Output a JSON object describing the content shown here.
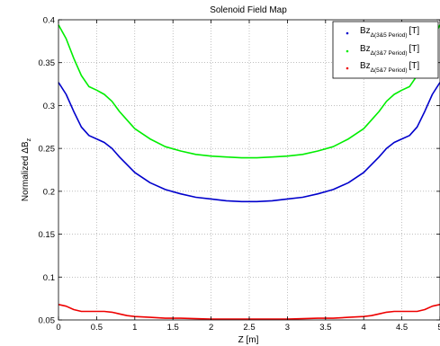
{
  "chart_data": {
    "type": "line",
    "title": "Solenoid Field Map",
    "xlabel": "Z [m]",
    "ylabel_main": "Normalized ΔB",
    "ylabel_sub": "z",
    "xlim": [
      0,
      5
    ],
    "ylim": [
      0.05,
      0.4
    ],
    "xticks": [
      "0",
      "0.5",
      "1",
      "1.5",
      "2",
      "2.5",
      "3",
      "3.5",
      "4",
      "4.5",
      "5"
    ],
    "yticks": [
      "0.05",
      "0.1",
      "0.15",
      "0.2",
      "0.25",
      "0.3",
      "0.35",
      "0.4"
    ],
    "grid": true,
    "legend_position": "top-right",
    "series": [
      {
        "legend_main": "Bz",
        "legend_sub": "Δ(3&5 Period)",
        "legend_unit": "[T]",
        "color": "#0000cc",
        "x": [
          0,
          0.1,
          0.2,
          0.3,
          0.4,
          0.5,
          0.6,
          0.7,
          0.8,
          0.9,
          1.0,
          1.2,
          1.4,
          1.6,
          1.8,
          2.0,
          2.2,
          2.4,
          2.5,
          2.6,
          2.8,
          3.0,
          3.2,
          3.4,
          3.6,
          3.8,
          4.0,
          4.1,
          4.2,
          4.3,
          4.4,
          4.5,
          4.6,
          4.7,
          4.8,
          4.9,
          5.0
        ],
        "y": [
          0.327,
          0.313,
          0.293,
          0.275,
          0.265,
          0.261,
          0.257,
          0.25,
          0.24,
          0.231,
          0.222,
          0.21,
          0.202,
          0.197,
          0.193,
          0.191,
          0.189,
          0.188,
          0.188,
          0.188,
          0.189,
          0.191,
          0.193,
          0.197,
          0.202,
          0.21,
          0.222,
          0.231,
          0.24,
          0.25,
          0.257,
          0.261,
          0.265,
          0.275,
          0.293,
          0.313,
          0.327
        ]
      },
      {
        "legend_main": "Bz",
        "legend_sub": "Δ(3&7 Period)",
        "legend_unit": "[T]",
        "color": "#00ee00",
        "x": [
          0,
          0.1,
          0.2,
          0.3,
          0.4,
          0.5,
          0.6,
          0.7,
          0.8,
          0.9,
          1.0,
          1.2,
          1.4,
          1.6,
          1.8,
          2.0,
          2.2,
          2.4,
          2.5,
          2.6,
          2.8,
          3.0,
          3.2,
          3.4,
          3.6,
          3.8,
          4.0,
          4.1,
          4.2,
          4.3,
          4.4,
          4.5,
          4.6,
          4.7,
          4.8,
          4.9,
          5.0
        ],
        "y": [
          0.394,
          0.378,
          0.355,
          0.335,
          0.322,
          0.318,
          0.313,
          0.305,
          0.293,
          0.283,
          0.273,
          0.261,
          0.252,
          0.247,
          0.243,
          0.241,
          0.24,
          0.239,
          0.239,
          0.239,
          0.24,
          0.241,
          0.243,
          0.247,
          0.252,
          0.261,
          0.273,
          0.283,
          0.293,
          0.305,
          0.313,
          0.318,
          0.322,
          0.335,
          0.355,
          0.378,
          0.394
        ]
      },
      {
        "legend_main": "Bz",
        "legend_sub": "Δ(5&7 Period)",
        "legend_unit": "[T]",
        "color": "#ee0000",
        "x": [
          0,
          0.1,
          0.2,
          0.3,
          0.4,
          0.5,
          0.6,
          0.7,
          0.8,
          0.9,
          1.0,
          1.2,
          1.4,
          1.6,
          1.8,
          2.0,
          2.2,
          2.4,
          2.5,
          2.6,
          2.8,
          3.0,
          3.2,
          3.4,
          3.6,
          3.8,
          4.0,
          4.1,
          4.2,
          4.3,
          4.4,
          4.5,
          4.6,
          4.7,
          4.8,
          4.9,
          5.0
        ],
        "y": [
          0.068,
          0.066,
          0.062,
          0.06,
          0.06,
          0.06,
          0.06,
          0.059,
          0.057,
          0.055,
          0.054,
          0.053,
          0.052,
          0.052,
          0.0515,
          0.051,
          0.051,
          0.051,
          0.051,
          0.051,
          0.051,
          0.051,
          0.0515,
          0.052,
          0.052,
          0.053,
          0.054,
          0.055,
          0.057,
          0.059,
          0.06,
          0.06,
          0.06,
          0.06,
          0.062,
          0.066,
          0.068
        ]
      }
    ]
  }
}
